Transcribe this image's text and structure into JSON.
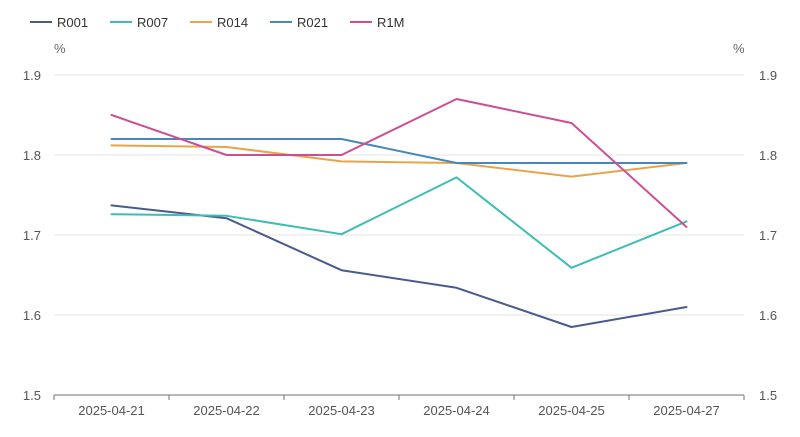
{
  "chart_data": {
    "type": "line",
    "categories": [
      "2025-04-21",
      "2025-04-22",
      "2025-04-23",
      "2025-04-24",
      "2025-04-25",
      "2025-04-27"
    ],
    "series": [
      {
        "name": "R001",
        "color": "#4a5a8c",
        "values": [
          1.737,
          1.721,
          1.656,
          1.634,
          1.585,
          1.61
        ]
      },
      {
        "name": "R007",
        "color": "#3dbdb4",
        "values": [
          1.726,
          1.724,
          1.701,
          1.772,
          1.659,
          1.717
        ]
      },
      {
        "name": "R014",
        "color": "#e8a44a",
        "values": [
          1.812,
          1.81,
          1.792,
          1.79,
          1.773,
          1.79
        ]
      },
      {
        "name": "R021",
        "color": "#4589ba",
        "values": [
          1.82,
          1.82,
          1.82,
          1.79,
          1.79,
          1.79
        ]
      },
      {
        "name": "R1M",
        "color": "#cc4f96",
        "values": [
          1.85,
          1.8,
          1.8,
          1.87,
          1.84,
          1.71
        ]
      }
    ],
    "ylim": [
      1.5,
      1.9
    ],
    "yticks": [
      "1.5",
      "1.6",
      "1.7",
      "1.8",
      "1.9"
    ],
    "left_unit": "%",
    "right_unit": "%",
    "legend_position": "top-left",
    "grid": true
  }
}
